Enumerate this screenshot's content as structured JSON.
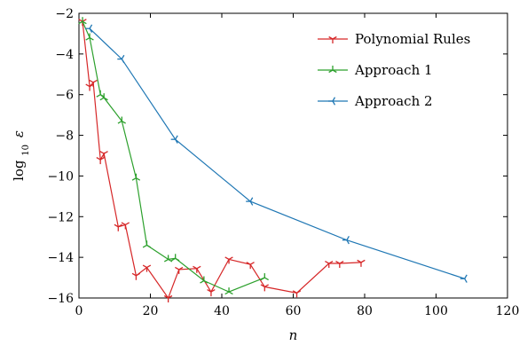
{
  "chart_data": {
    "type": "line",
    "xlabel": "n",
    "ylabel_prefix": "log",
    "ylabel_sub": "10",
    "ylabel_var": "ε",
    "xlim": [
      0,
      120
    ],
    "ylim": [
      -16,
      -2
    ],
    "xticks": [
      0,
      20,
      40,
      60,
      80,
      100,
      120
    ],
    "yticks": [
      -2,
      -4,
      -6,
      -8,
      -10,
      -12,
      -14,
      -16
    ],
    "xtick_labels": [
      "0",
      "20",
      "40",
      "60",
      "80",
      "100",
      "120"
    ],
    "ytick_labels": [
      "−2",
      "−4",
      "−6",
      "−8",
      "−10",
      "−12",
      "−14",
      "−16"
    ],
    "grid": false,
    "legend_position": "top-right",
    "series": [
      {
        "name": "Polynomial Rules",
        "color": "#d62728",
        "marker": "tri_down",
        "points": [
          [
            1,
            -2.4
          ],
          [
            3,
            -5.6
          ],
          [
            4,
            -5.4
          ],
          [
            6,
            -9.2
          ],
          [
            7,
            -8.9
          ],
          [
            11,
            -12.5
          ],
          [
            13,
            -12.4
          ],
          [
            16,
            -14.9
          ],
          [
            19,
            -14.5
          ],
          [
            25,
            -16.0
          ],
          [
            28,
            -14.6
          ],
          [
            33,
            -14.55
          ],
          [
            37,
            -15.7
          ],
          [
            42,
            -14.1
          ],
          [
            48,
            -14.35
          ],
          [
            52,
            -15.45
          ],
          [
            61,
            -15.75
          ],
          [
            70,
            -14.3
          ],
          [
            73,
            -14.3
          ],
          [
            79,
            -14.25
          ]
        ]
      },
      {
        "name": "Approach 1",
        "color": "#2ca02c",
        "marker": "tri_up",
        "points": [
          [
            1,
            -2.4
          ],
          [
            3,
            -3.2
          ],
          [
            6,
            -6.0
          ],
          [
            7,
            -6.15
          ],
          [
            12,
            -7.3
          ],
          [
            16,
            -10.1
          ],
          [
            19,
            -13.4
          ],
          [
            25,
            -14.1
          ],
          [
            27,
            -14.05
          ],
          [
            35,
            -15.15
          ],
          [
            42,
            -15.7
          ],
          [
            52,
            -15.0
          ]
        ]
      },
      {
        "name": "Approach 2",
        "color": "#1f77b4",
        "marker": "tri_left",
        "points": [
          [
            3,
            -2.75
          ],
          [
            12,
            -4.25
          ],
          [
            27,
            -8.2
          ],
          [
            48,
            -11.25
          ],
          [
            75,
            -13.15
          ],
          [
            108,
            -15.05
          ]
        ]
      }
    ]
  }
}
